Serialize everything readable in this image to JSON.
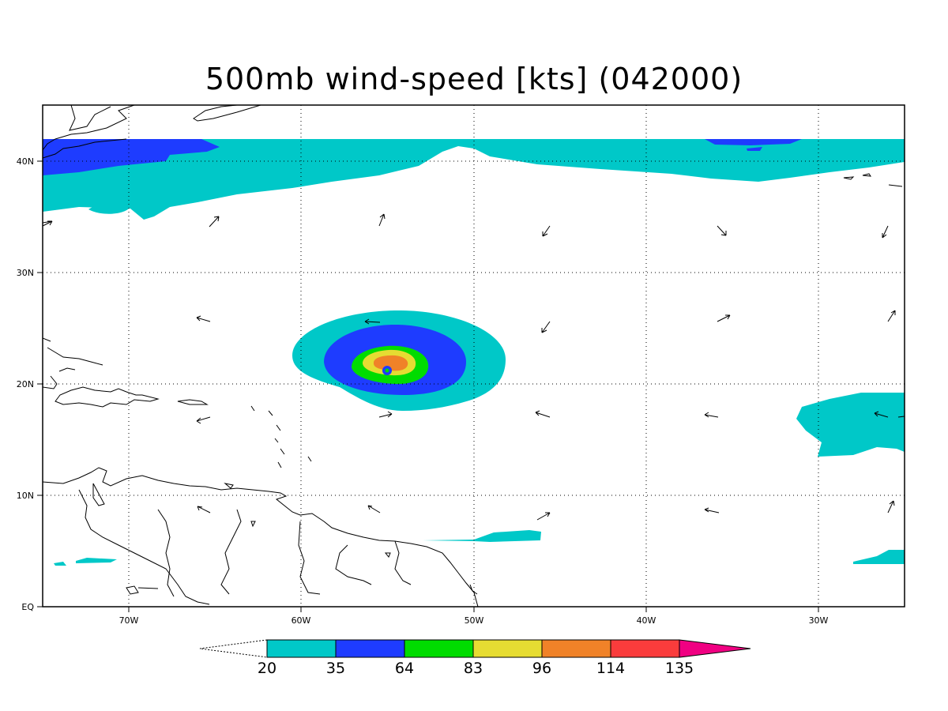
{
  "title": "500mb wind-speed [kts] (042000)",
  "lon_labels": [
    "70W",
    "60W",
    "50W",
    "40W",
    "30W"
  ],
  "lat_labels": [
    "40N",
    "30N",
    "20N",
    "10N",
    "EQ"
  ],
  "colorbar": {
    "bounds": [
      "20",
      "35",
      "64",
      "83",
      "96",
      "114",
      "135"
    ],
    "colors": [
      "#00c8c8",
      "#1e3cff",
      "#00dc00",
      "#e6dc32",
      "#f08228",
      "#fa3c3c",
      "#f00082"
    ]
  },
  "map_extent": {
    "lon": [
      -75,
      -25
    ],
    "lat": [
      0,
      45
    ]
  }
}
